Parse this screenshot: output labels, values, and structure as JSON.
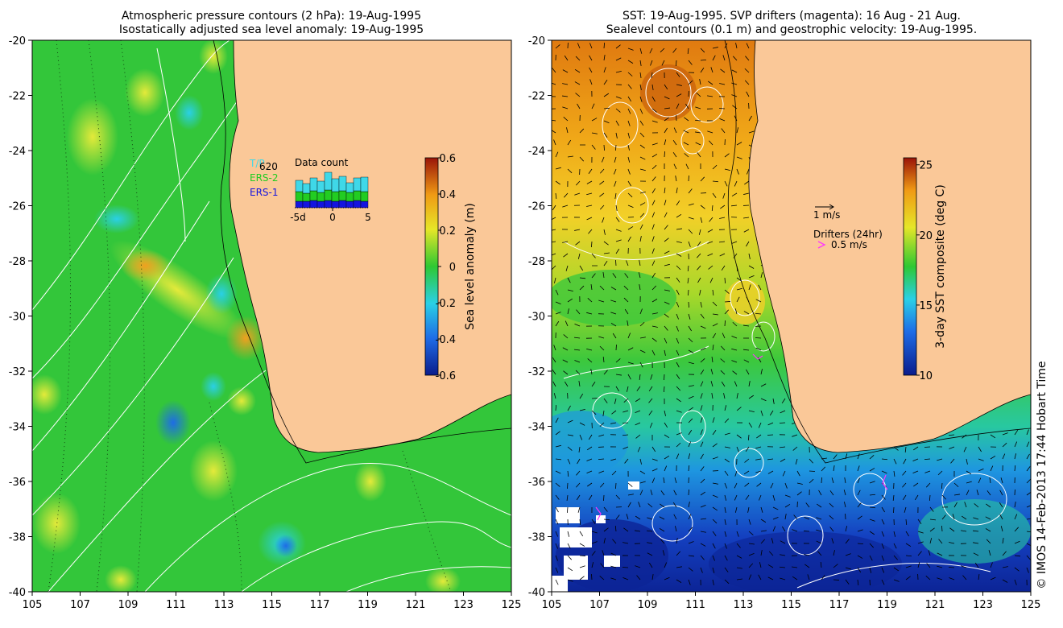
{
  "left_panel": {
    "title_line1": "Atmospheric pressure contours (2 hPa): 19-Aug-1995",
    "title_line2": "Isostatically adjusted sea level anomaly: 19-Aug-1995",
    "colorbar": {
      "label": "Sea level anomaly (m)",
      "ticks": [
        "0.6",
        "0.4",
        "0.2",
        "0",
        "-0.2",
        "-0.4",
        "-0.6"
      ],
      "range": [
        -0.6,
        0.6
      ]
    },
    "inset": {
      "title": "Data count",
      "count": "620",
      "legend": [
        {
          "name": "T/P",
          "color": "#3fd8e8"
        },
        {
          "name": "ERS-2",
          "color": "#22cc22"
        },
        {
          "name": "ERS-1",
          "color": "#1414e0"
        }
      ],
      "xticks": [
        "-5d",
        "0",
        "5"
      ]
    }
  },
  "right_panel": {
    "title_line1": "SST: 19-Aug-1995. SVP drifters (magenta): 16 Aug - 21 Aug.",
    "title_line2": "Sealevel contours (0.1 m) and geostrophic velocity: 19-Aug-1995.",
    "colorbar": {
      "label": "3-day SST composite (deg C)",
      "ticks": [
        "25",
        "20",
        "15",
        "10"
      ],
      "range": [
        10,
        25.5
      ]
    },
    "scale_arrow_label": "1 m/s",
    "drifters_label": "Drifters (24hr)",
    "drifter_scale_label": "0.5 m/s"
  },
  "axes": {
    "lat_ticks": [
      "-20",
      "-22",
      "-24",
      "-26",
      "-28",
      "-30",
      "-32",
      "-34",
      "-36",
      "-38",
      "-40"
    ],
    "lon_ticks": [
      "105",
      "107",
      "109",
      "111",
      "113",
      "115",
      "117",
      "119",
      "121",
      "123",
      "125"
    ]
  },
  "credit": "© IMOS 14-Feb-2013 17:44 Hobart Time",
  "colors": {
    "land": "#fac898",
    "ocean_green": "#33c63a",
    "drifter": "#ff33ff"
  }
}
